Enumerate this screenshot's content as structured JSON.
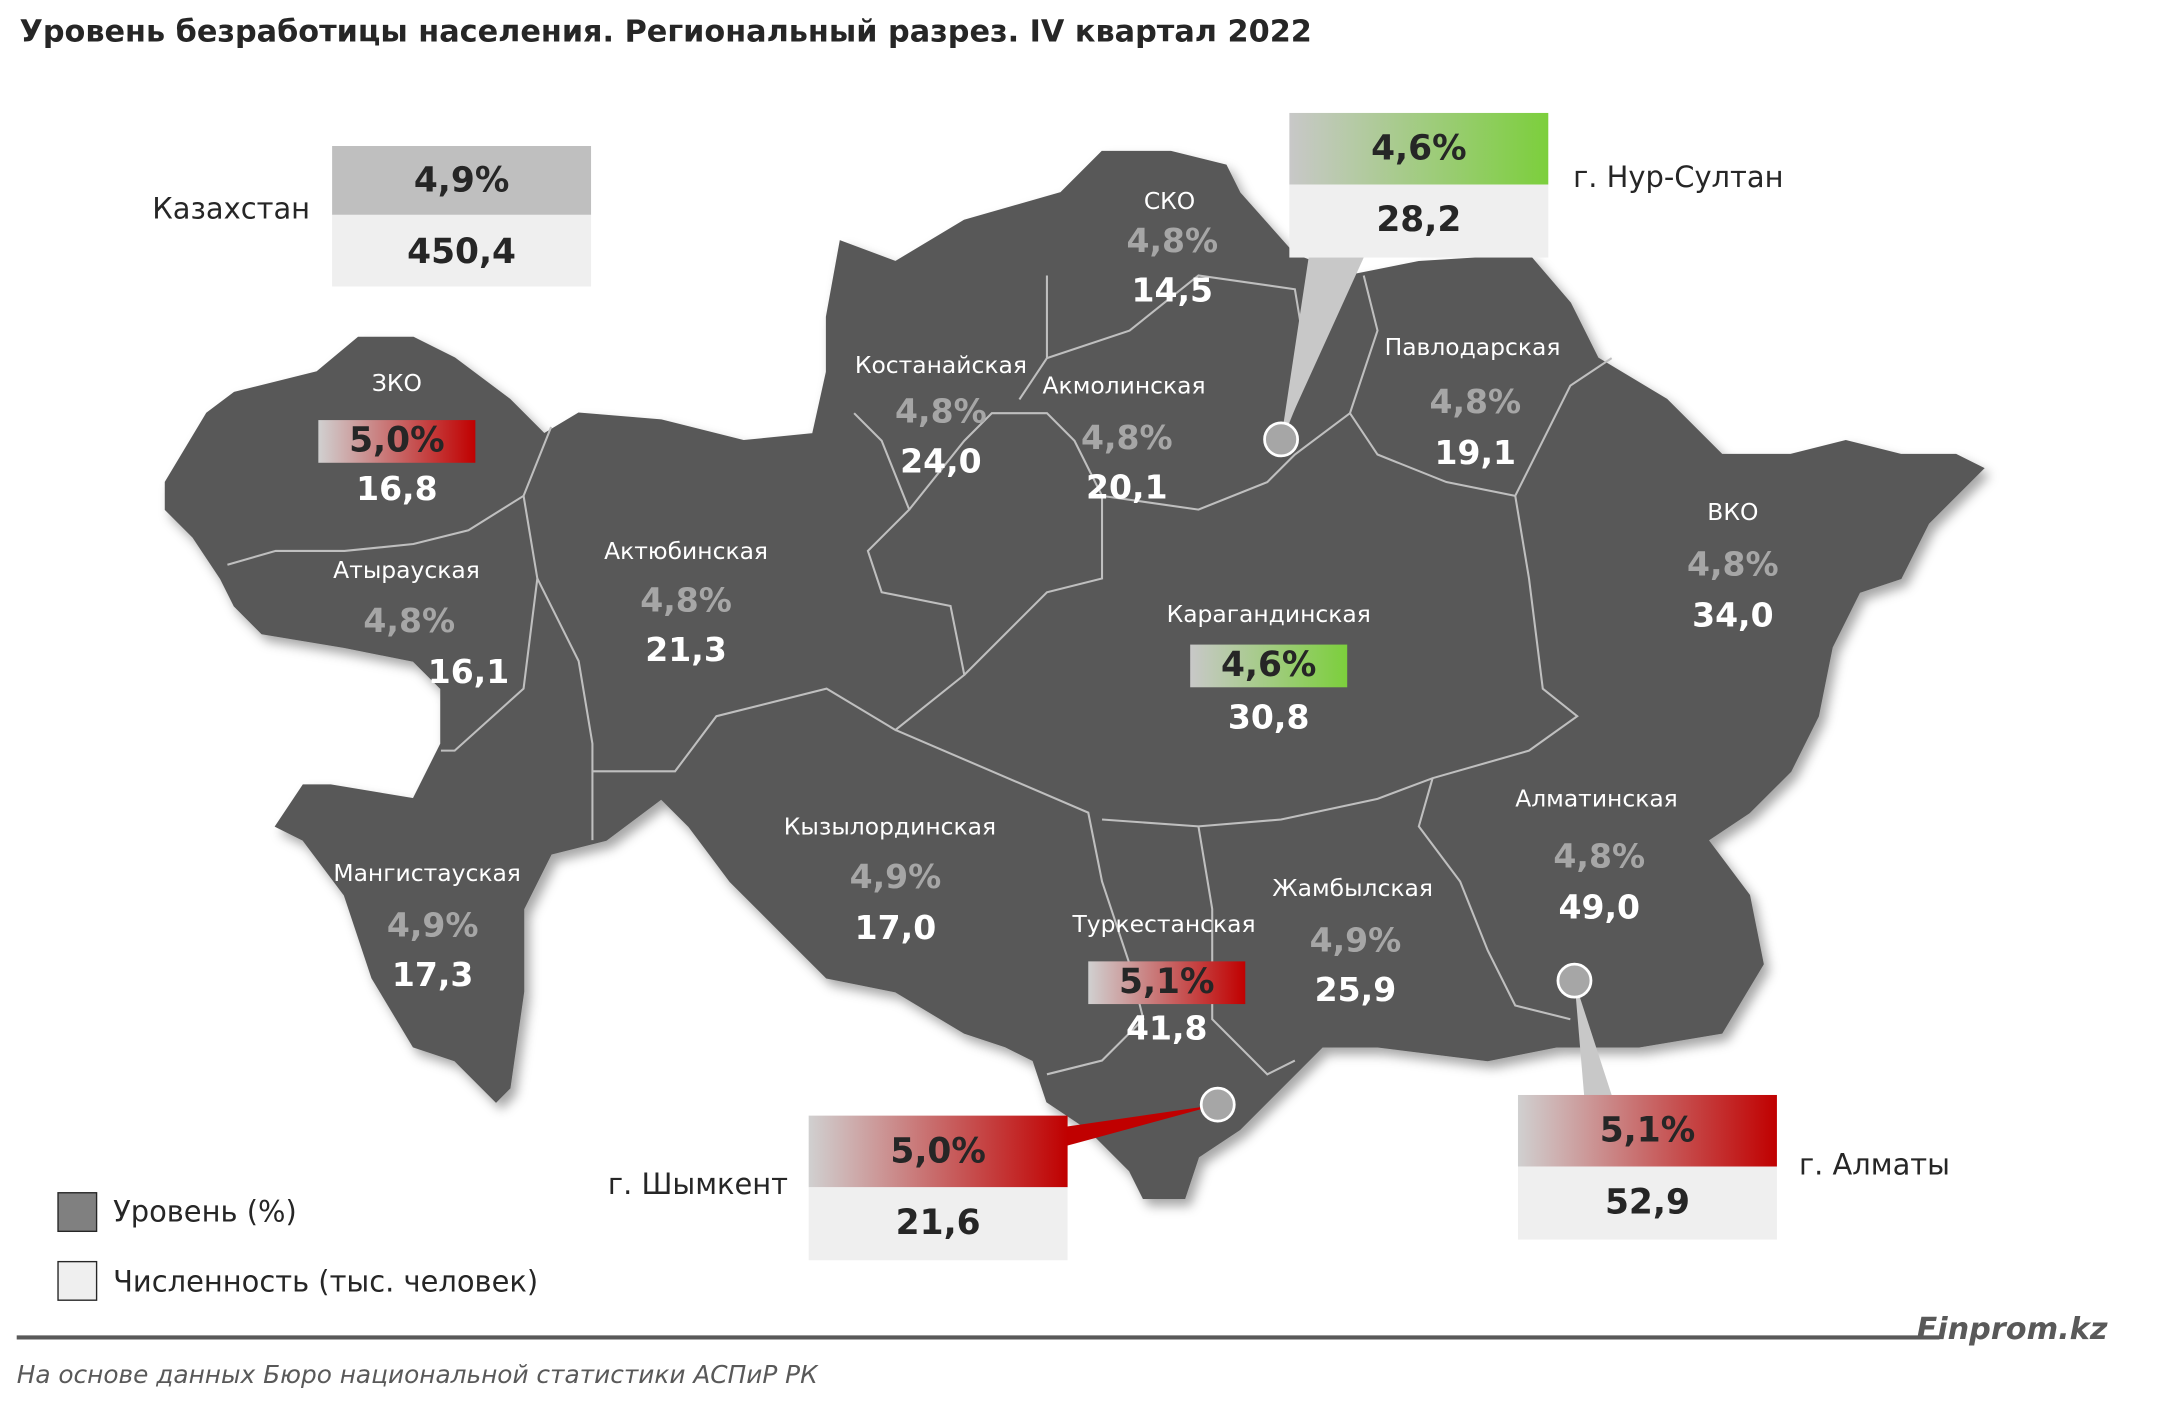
{
  "title": "Уровень безработицы населения. Региональный разрез. IV квартал 2022",
  "summary": {
    "name": "Казахстан",
    "rate": "4,9%",
    "count": "450,4"
  },
  "regions": [
    {
      "name": "ЗКО",
      "rate": "5,0%",
      "count": "16,8"
    },
    {
      "name": "Атырауская",
      "rate": "4,8%",
      "count": "16,1"
    },
    {
      "name": "Актюбинская",
      "rate": "4,8%",
      "count": "21,3"
    },
    {
      "name": "Мангистауская",
      "rate": "4,9%",
      "count": "17,3"
    },
    {
      "name": "Костанайская",
      "rate": "4,8%",
      "count": "24,0"
    },
    {
      "name": "СКО",
      "rate": "4,8%",
      "count": "14,5"
    },
    {
      "name": "Акмолинская",
      "rate": "4,8%",
      "count": "20,1"
    },
    {
      "name": "Павлодарская",
      "rate": "4,8%",
      "count": "19,1"
    },
    {
      "name": "ВКО",
      "rate": "4,8%",
      "count": "34,0"
    },
    {
      "name": "Карагандинская",
      "rate": "4,6%",
      "count": "30,8"
    },
    {
      "name": "Кызылординская",
      "rate": "4,9%",
      "count": "17,0"
    },
    {
      "name": "Туркестанская",
      "rate": "5,1%",
      "count": "41,8"
    },
    {
      "name": "Жамбылская",
      "rate": "4,9%",
      "count": "25,9"
    },
    {
      "name": "Алматинская",
      "rate": "4,8%",
      "count": "49,0"
    }
  ],
  "cities": [
    {
      "name": "г. Нур-Султан",
      "rate": "4,6%",
      "count": "28,2"
    },
    {
      "name": "г. Шымкент",
      "rate": "5,0%",
      "count": "21,6"
    },
    {
      "name": "г. Алматы",
      "rate": "5,1%",
      "count": "52,9"
    }
  ],
  "legend": [
    "Уровень (%)",
    "Численность (тыс. человек)"
  ],
  "brand": "Finprom.kz",
  "source": "На основе данных Бюро национальной статистики АСПиР РК"
}
